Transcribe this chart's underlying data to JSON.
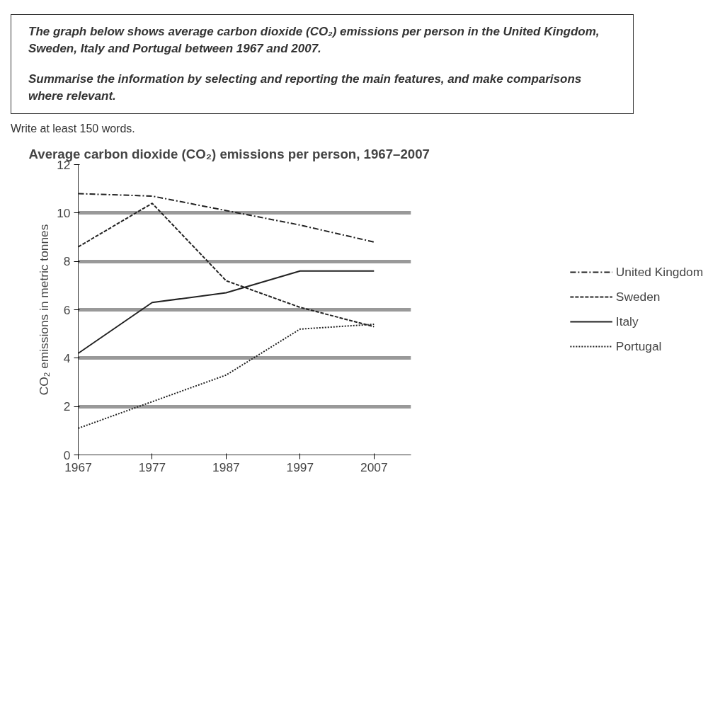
{
  "chart_data": {
    "type": "line",
    "title": "Average carbon dioxide (CO₂) emissions per person, 1967–2007",
    "ylabel": "CO₂ emissions in metric tonnes",
    "annotations": [
      "The graph below shows average carbon dioxide (CO₂) emissions per person in the United Kingdom, Sweden, Italy and Portugal between 1967 and 2007.",
      "Summarise the information by selecting and reporting the main features, and make comparisons where relevant.",
      "Write at least 150 words."
    ],
    "x": [
      1967,
      1977,
      1987,
      1997,
      2007
    ],
    "series": [
      {
        "name": "United Kingdom",
        "color": "#222222",
        "line_style": "dashdot",
        "values": [
          10.8,
          10.7,
          10.1,
          9.5,
          8.8
        ]
      },
      {
        "name": "Sweden",
        "color": "#222222",
        "line_style": "dashed",
        "values": [
          8.6,
          10.4,
          7.2,
          6.1,
          5.3
        ]
      },
      {
        "name": "Italy",
        "color": "#222222",
        "line_style": "solid",
        "values": [
          4.2,
          6.3,
          6.7,
          7.6,
          7.6
        ]
      },
      {
        "name": "Portugal",
        "color": "#222222",
        "line_style": "dotted",
        "values": [
          1.1,
          2.2,
          3.3,
          5.2,
          5.4
        ]
      }
    ],
    "xlim": [
      1967,
      2012
    ],
    "xticks": [
      1967,
      1977,
      1987,
      1997,
      2007
    ],
    "ylim": [
      0,
      12
    ],
    "yticks": [
      0,
      2,
      4,
      6,
      8,
      10,
      12
    ],
    "grid": "y",
    "legend": "right",
    "marker": "none"
  }
}
